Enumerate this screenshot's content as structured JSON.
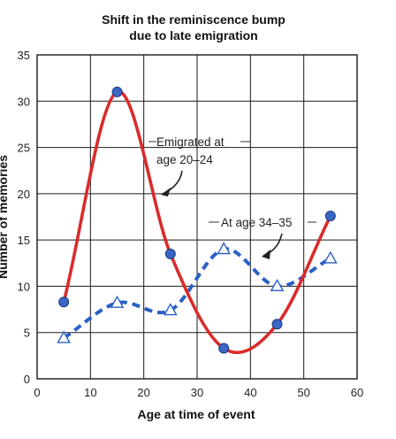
{
  "chart_data": {
    "type": "line",
    "title_lines": [
      "Shift in the reminiscence bump",
      "due to late emigration"
    ],
    "xlabel": "Age at time of event",
    "ylabel": "Number of memories",
    "xlim": [
      0,
      60
    ],
    "ylim": [
      0,
      35
    ],
    "x_ticks": [
      0,
      10,
      20,
      30,
      40,
      50,
      60
    ],
    "y_ticks": [
      0,
      5,
      10,
      15,
      20,
      25,
      30,
      35
    ],
    "grid": true,
    "series": [
      {
        "name": "Emigrated at age 20–24",
        "x": [
          5,
          15,
          25,
          35,
          45,
          55
        ],
        "y": [
          8.3,
          31,
          13.5,
          3.3,
          5.9,
          17.6
        ],
        "color": "#d92b2b",
        "marker_color": "#3a66c4",
        "marker": "circle",
        "line_style": "solid"
      },
      {
        "name": "At age 34–35",
        "x": [
          5,
          15,
          25,
          35,
          45,
          55
        ],
        "y": [
          4.4,
          8.2,
          7.4,
          14,
          10,
          13
        ],
        "color": "#2b60c4",
        "marker": "triangle",
        "line_style": "dashed"
      }
    ],
    "annotations": [
      {
        "lines": [
          "Emigrated at",
          "age 20–24"
        ]
      },
      {
        "lines": [
          "At age 34–35"
        ]
      }
    ]
  }
}
